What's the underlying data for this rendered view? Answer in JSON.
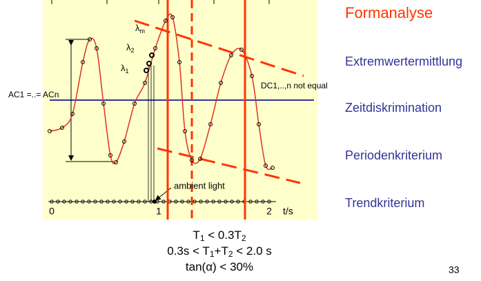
{
  "diagram": {
    "bracket_label": "AC1 =..= ACn",
    "dc_label": "DC1,..,n not equal",
    "lambdas": [
      [
        "λ",
        "m"
      ],
      [
        "λ",
        "2"
      ],
      [
        "λ",
        "1"
      ]
    ],
    "ambient_label": "ambient light",
    "axis_labels": [
      "0",
      "1",
      "2"
    ],
    "axis_unit": "t/s"
  },
  "criteria": [
    "Formanalyse",
    "Extremwertermittlung",
    "Zeitdiskrimination",
    "Periodenkriterium",
    "Trendkriterium"
  ],
  "formulas": [
    [
      "T",
      "1",
      " < 0.3T",
      "2"
    ],
    [
      "0.3s < T",
      "1",
      "+T",
      "2",
      " < 2.0 s"
    ],
    [
      "tan(α) < 30%"
    ]
  ],
  "page_number": "33"
}
